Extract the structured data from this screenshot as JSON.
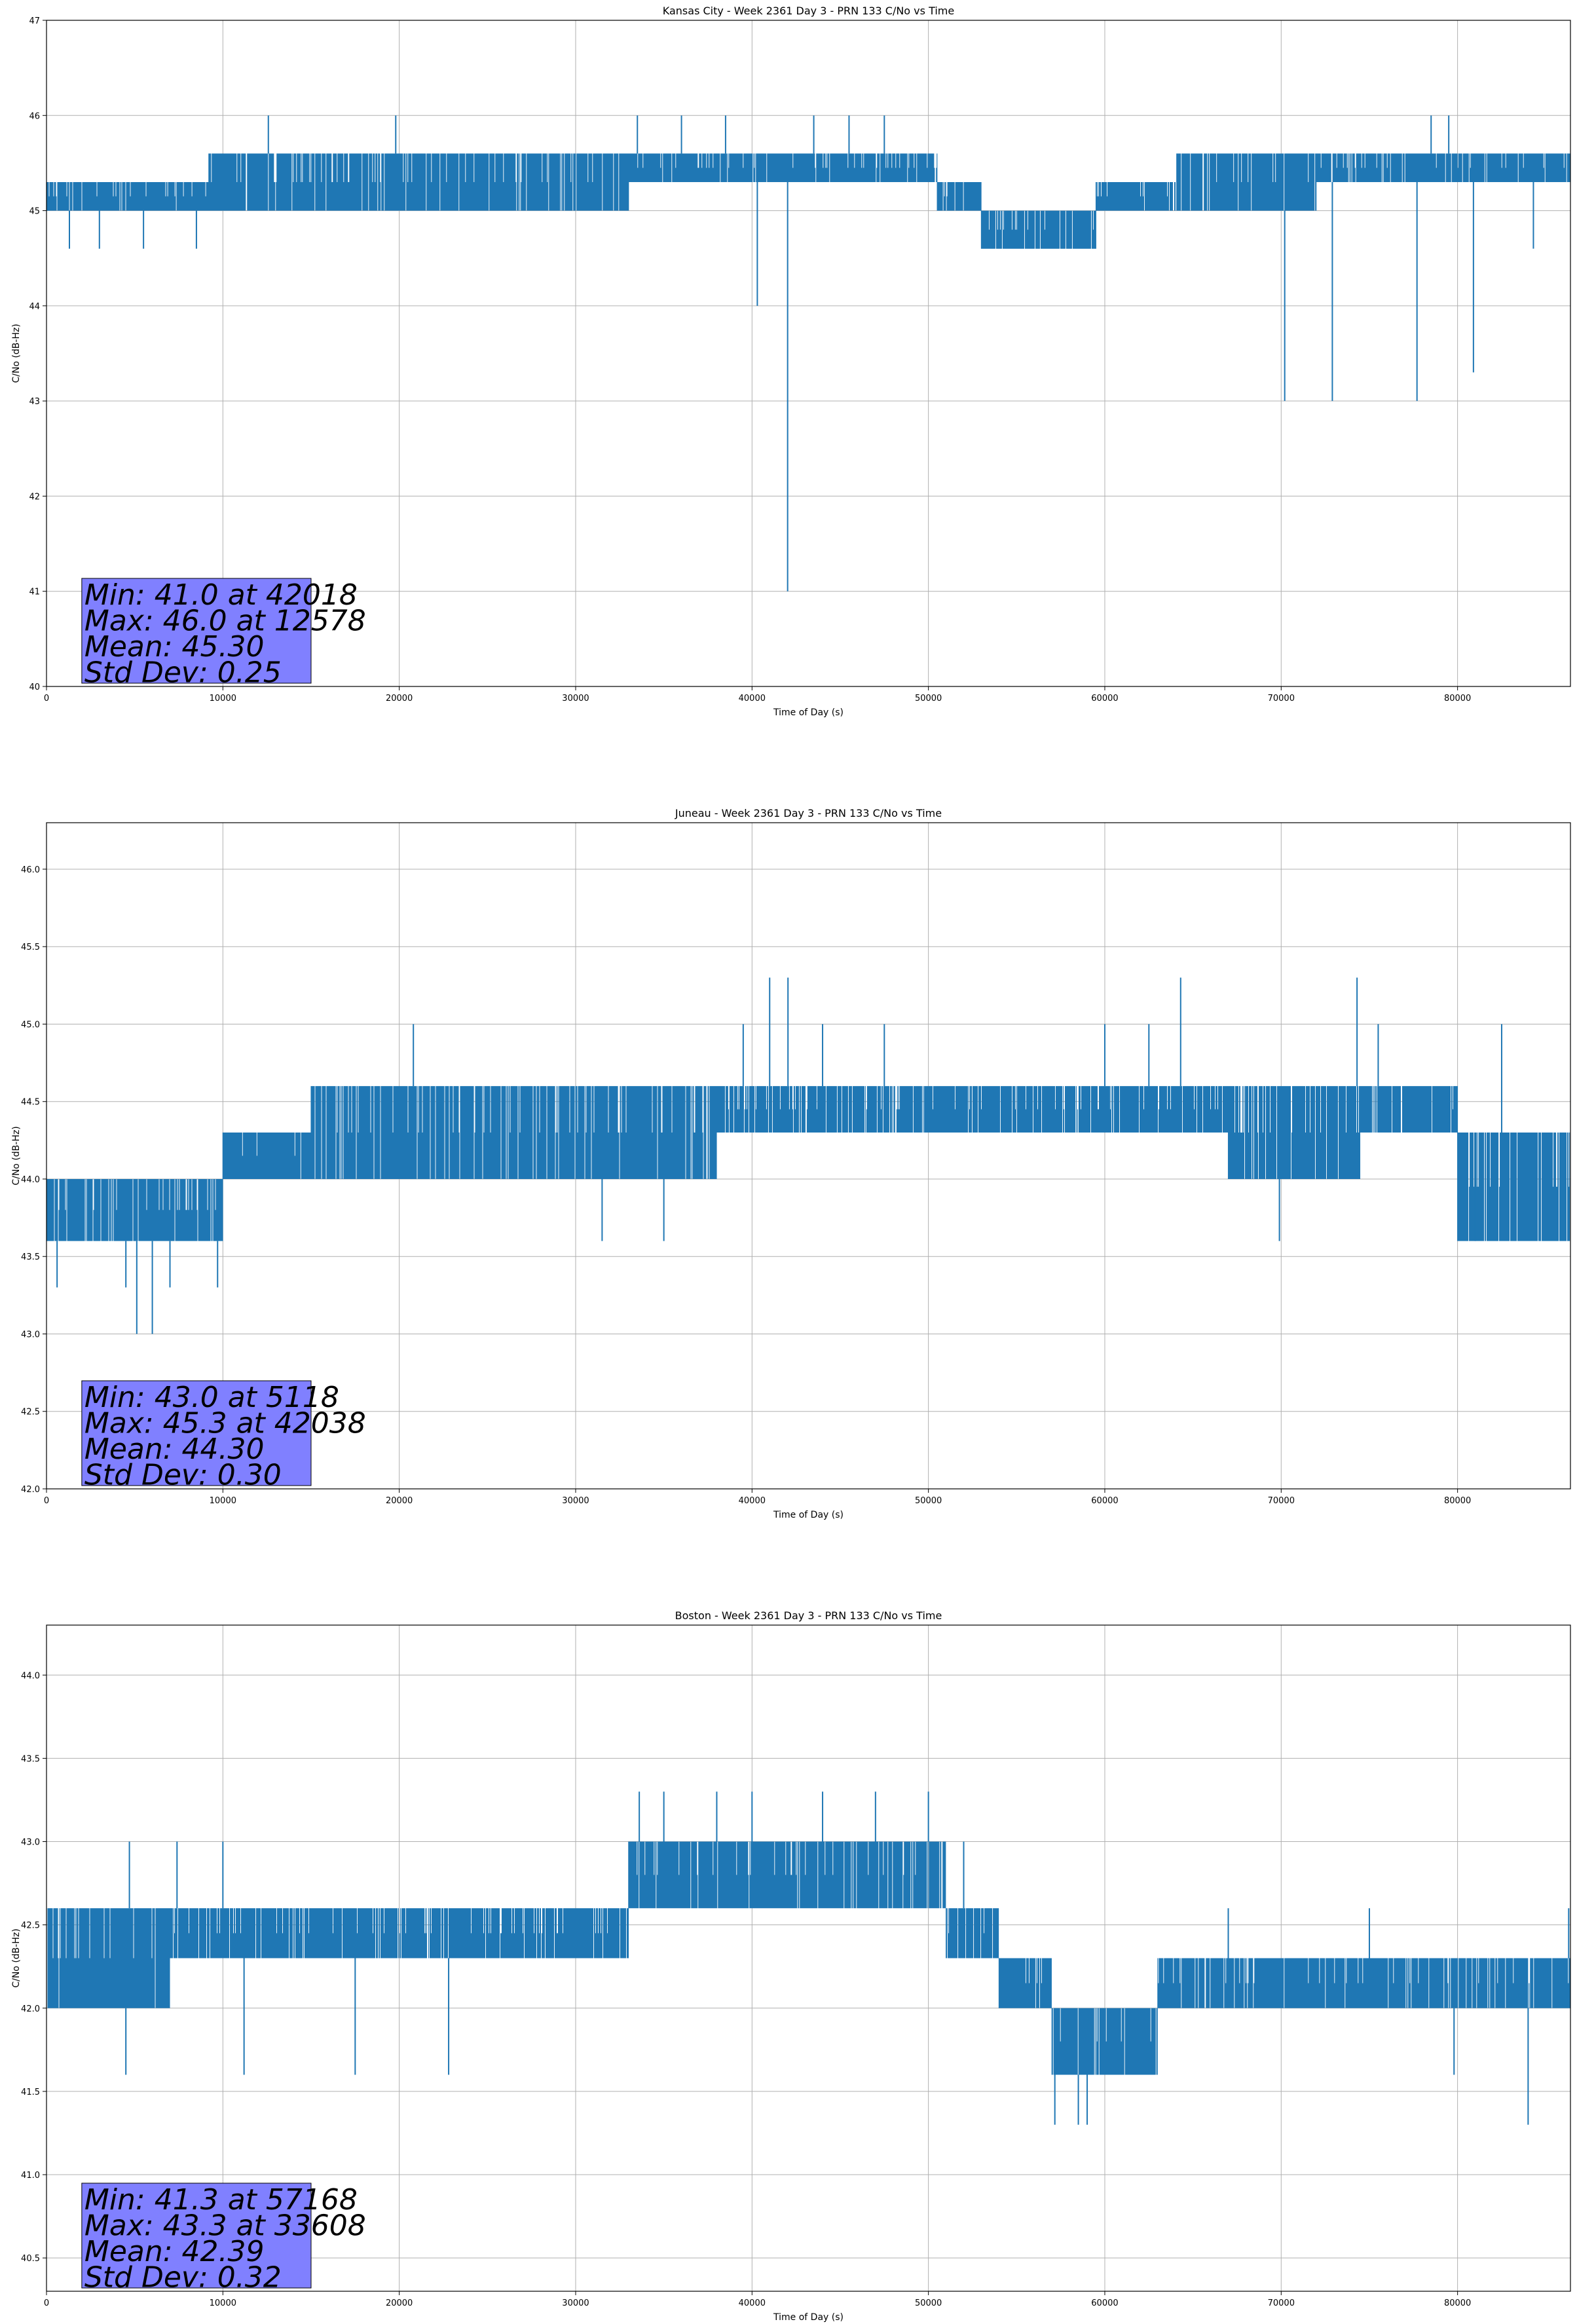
{
  "chart_data": [
    {
      "type": "line",
      "title": "Kansas City - Week 2361 Day 3 - PRN 133 C/No vs Time",
      "xlabel": "Time of Day (s)",
      "ylabel": "C/No (dB-Hz)",
      "xlim": [
        0,
        86400
      ],
      "ylim": [
        40,
        47
      ],
      "xticks": [
        0,
        10000,
        20000,
        30000,
        40000,
        50000,
        60000,
        70000,
        80000
      ],
      "yticks": [
        40,
        41,
        42,
        43,
        44,
        45,
        46,
        47
      ],
      "ytick_labels": [
        "40",
        "41",
        "42",
        "43",
        "44",
        "45",
        "46",
        "47"
      ],
      "grid": true,
      "line_color": "#1f77b4",
      "series": [
        {
          "name": "C/No",
          "segments": [
            {
              "x0": 0,
              "x1": 6800,
              "lo": 45.0,
              "hi": 45.3
            },
            {
              "x0": 6800,
              "x1": 9200,
              "lo": 45.0,
              "hi": 45.3
            },
            {
              "x0": 9200,
              "x1": 33000,
              "lo": 45.0,
              "hi": 45.6
            },
            {
              "x0": 33000,
              "x1": 50500,
              "lo": 45.3,
              "hi": 45.6
            },
            {
              "x0": 50500,
              "x1": 53000,
              "lo": 45.0,
              "hi": 45.3
            },
            {
              "x0": 53000,
              "x1": 59500,
              "lo": 44.6,
              "hi": 45.0
            },
            {
              "x0": 59500,
              "x1": 64000,
              "lo": 45.0,
              "hi": 45.3
            },
            {
              "x0": 64000,
              "x1": 72000,
              "lo": 45.0,
              "hi": 45.6
            },
            {
              "x0": 72000,
              "x1": 86400,
              "lo": 45.3,
              "hi": 45.6
            }
          ],
          "spikes": [
            [
              42018,
              41.0
            ],
            [
              40300,
              44.0
            ],
            [
              70200,
              43.0
            ],
            [
              72900,
              43.0
            ],
            [
              77700,
              43.0
            ],
            [
              80900,
              43.3
            ],
            [
              12578,
              46.0
            ],
            [
              19800,
              46.0
            ],
            [
              33500,
              46.0
            ],
            [
              36000,
              46.0
            ],
            [
              38500,
              46.0
            ],
            [
              43500,
              46.0
            ],
            [
              45500,
              46.0
            ],
            [
              47500,
              46.0
            ],
            [
              78500,
              46.0
            ],
            [
              79500,
              46.0
            ],
            [
              3000,
              44.6
            ],
            [
              5500,
              44.6
            ],
            [
              8500,
              44.6
            ],
            [
              1300,
              44.6
            ],
            [
              84300,
              44.6
            ]
          ]
        }
      ],
      "stats": {
        "min": "Min: 41.0 at 42018",
        "max": "Max: 46.0 at 12578",
        "mean": "Mean: 45.30",
        "std": "Std Dev: 0.25"
      }
    },
    {
      "type": "line",
      "title": "Juneau - Week 2361 Day 3 - PRN 133 C/No vs Time",
      "xlabel": "Time of Day (s)",
      "ylabel": "C/No (dB-Hz)",
      "xlim": [
        0,
        86400
      ],
      "ylim": [
        42.0,
        46.3
      ],
      "xticks": [
        0,
        10000,
        20000,
        30000,
        40000,
        50000,
        60000,
        70000,
        80000
      ],
      "yticks": [
        42.0,
        42.5,
        43.0,
        43.5,
        44.0,
        44.5,
        45.0,
        45.5,
        46.0
      ],
      "ytick_labels": [
        "42.0",
        "42.5",
        "43.0",
        "43.5",
        "44.0",
        "44.5",
        "45.0",
        "45.5",
        "46.0"
      ],
      "grid": true,
      "line_color": "#1f77b4",
      "series": [
        {
          "name": "C/No",
          "segments": [
            {
              "x0": 0,
              "x1": 10000,
              "lo": 43.6,
              "hi": 44.0
            },
            {
              "x0": 10000,
              "x1": 15000,
              "lo": 44.0,
              "hi": 44.3
            },
            {
              "x0": 15000,
              "x1": 38000,
              "lo": 44.0,
              "hi": 44.6
            },
            {
              "x0": 38000,
              "x1": 52000,
              "lo": 44.3,
              "hi": 44.6
            },
            {
              "x0": 52000,
              "x1": 67000,
              "lo": 44.3,
              "hi": 44.6
            },
            {
              "x0": 67000,
              "x1": 74500,
              "lo": 44.0,
              "hi": 44.6
            },
            {
              "x0": 74500,
              "x1": 80000,
              "lo": 44.3,
              "hi": 44.6
            },
            {
              "x0": 80000,
              "x1": 86400,
              "lo": 43.6,
              "hi": 44.3
            }
          ],
          "spikes": [
            [
              5118,
              43.0
            ],
            [
              6000,
              43.0
            ],
            [
              600,
              43.3
            ],
            [
              4500,
              43.3
            ],
            [
              7000,
              43.3
            ],
            [
              9700,
              43.3
            ],
            [
              42038,
              45.3
            ],
            [
              41000,
              45.3
            ],
            [
              64300,
              45.3
            ],
            [
              74300,
              45.3
            ],
            [
              20800,
              45.0
            ],
            [
              39500,
              45.0
            ],
            [
              44000,
              45.0
            ],
            [
              47500,
              45.0
            ],
            [
              60000,
              45.0
            ],
            [
              62500,
              45.0
            ],
            [
              75500,
              45.0
            ],
            [
              82500,
              45.0
            ],
            [
              31500,
              43.6
            ],
            [
              35000,
              43.6
            ],
            [
              69900,
              43.6
            ],
            [
              81000,
              43.6
            ]
          ]
        }
      ],
      "stats": {
        "min": "Min: 43.0 at 5118",
        "max": "Max: 45.3 at 42038",
        "mean": "Mean: 44.30",
        "std": "Std Dev: 0.30"
      }
    },
    {
      "type": "line",
      "title": "Boston - Week 2361 Day 3 - PRN 133 C/No vs Time",
      "xlabel": "Time of Day (s)",
      "ylabel": "C/No (dB-Hz)",
      "xlim": [
        0,
        86400
      ],
      "ylim": [
        40.3,
        44.3
      ],
      "xticks": [
        0,
        10000,
        20000,
        30000,
        40000,
        50000,
        60000,
        70000,
        80000
      ],
      "yticks": [
        40.5,
        41.0,
        41.5,
        42.0,
        42.5,
        43.0,
        43.5,
        44.0
      ],
      "ytick_labels": [
        "40.5",
        "41.0",
        "41.5",
        "42.0",
        "42.5",
        "43.0",
        "43.5",
        "44.0"
      ],
      "grid": true,
      "line_color": "#1f77b4",
      "series": [
        {
          "name": "C/No",
          "segments": [
            {
              "x0": 0,
              "x1": 7000,
              "lo": 42.0,
              "hi": 42.6
            },
            {
              "x0": 7000,
              "x1": 33000,
              "lo": 42.3,
              "hi": 42.6
            },
            {
              "x0": 33000,
              "x1": 51000,
              "lo": 42.6,
              "hi": 43.0
            },
            {
              "x0": 51000,
              "x1": 54000,
              "lo": 42.3,
              "hi": 42.6
            },
            {
              "x0": 54000,
              "x1": 57000,
              "lo": 42.0,
              "hi": 42.3
            },
            {
              "x0": 57000,
              "x1": 63000,
              "lo": 41.6,
              "hi": 42.0
            },
            {
              "x0": 63000,
              "x1": 86400,
              "lo": 42.0,
              "hi": 42.3
            }
          ],
          "spikes": [
            [
              57168,
              41.3
            ],
            [
              58500,
              41.3
            ],
            [
              59000,
              41.3
            ],
            [
              84000,
              41.3
            ],
            [
              4500,
              41.6
            ],
            [
              11200,
              41.6
            ],
            [
              17500,
              41.6
            ],
            [
              22800,
              41.6
            ],
            [
              79800,
              41.6
            ],
            [
              33608,
              43.3
            ],
            [
              35000,
              43.3
            ],
            [
              38000,
              43.3
            ],
            [
              40000,
              43.3
            ],
            [
              44000,
              43.3
            ],
            [
              47000,
              43.3
            ],
            [
              50000,
              43.3
            ],
            [
              4700,
              43.0
            ],
            [
              7400,
              43.0
            ],
            [
              10000,
              43.0
            ],
            [
              52000,
              43.0
            ],
            [
              67000,
              42.6
            ],
            [
              75000,
              42.6
            ],
            [
              86300,
              42.6
            ]
          ]
        }
      ],
      "stats": {
        "min": "Min: 41.3 at 57168",
        "max": "Max: 43.3 at 33608",
        "mean": "Mean: 42.39",
        "std": "Std Dev: 0.32"
      }
    }
  ]
}
